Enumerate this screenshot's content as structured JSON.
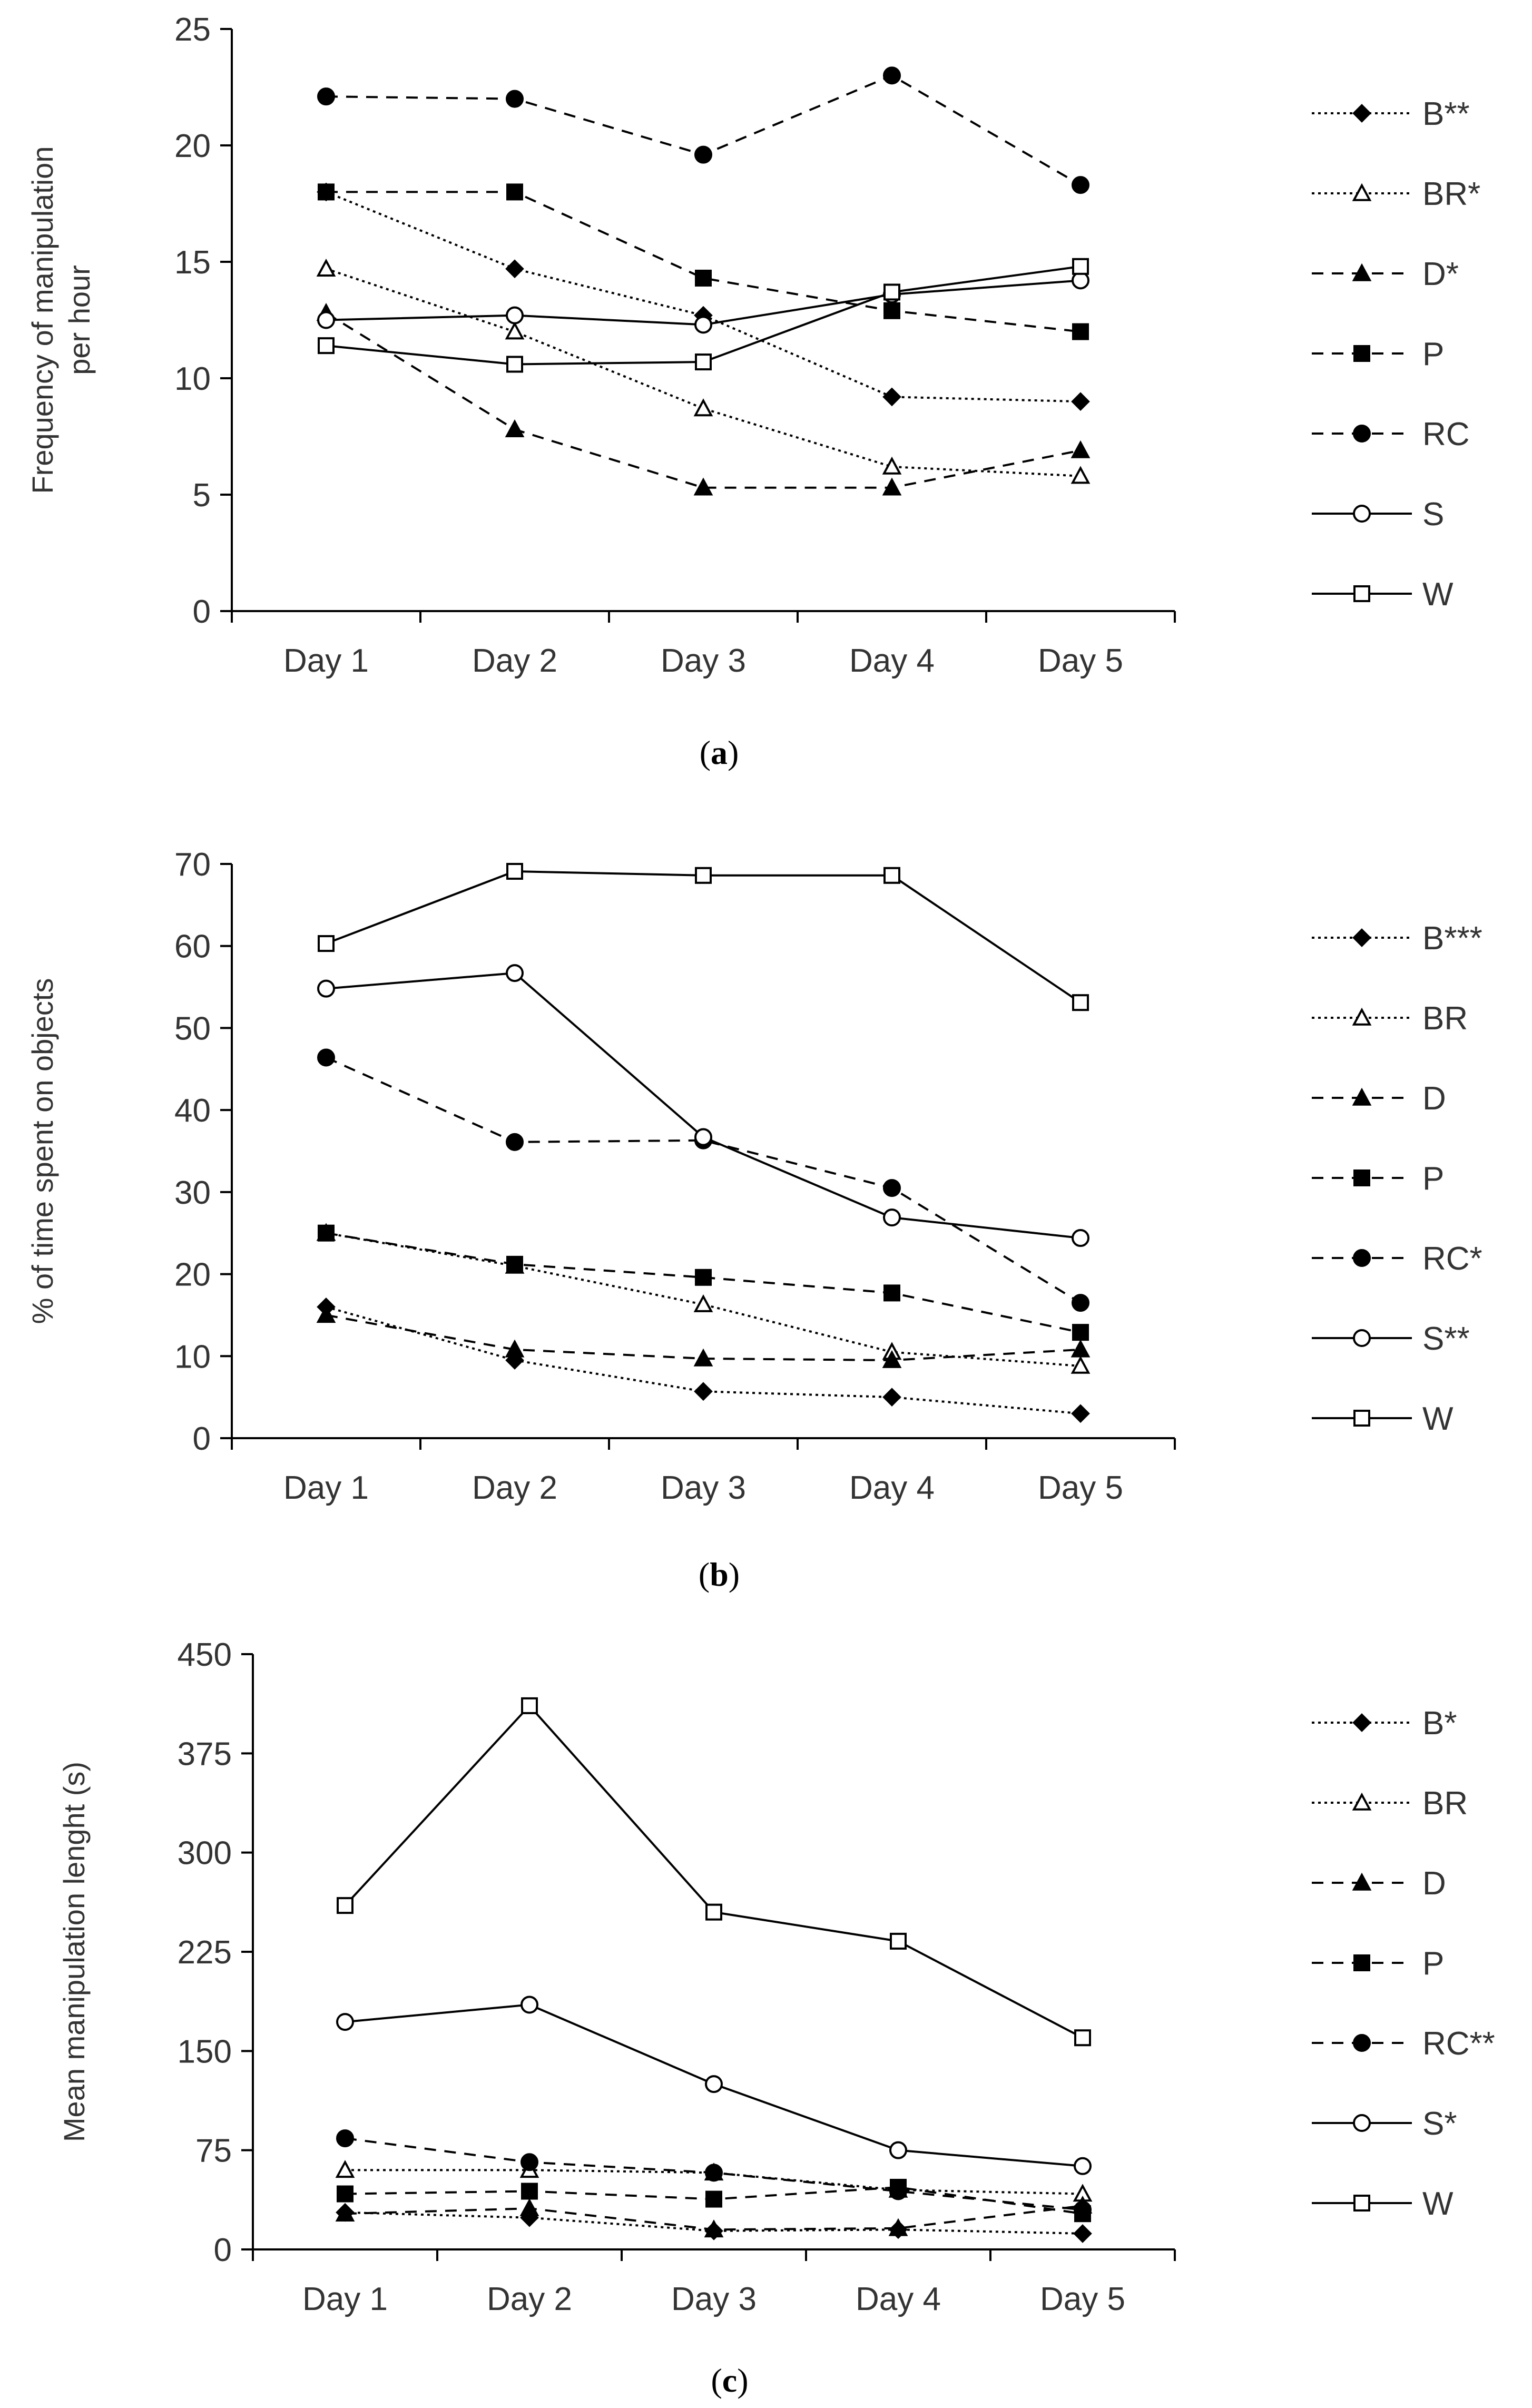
{
  "chart_data": [
    {
      "type": "line",
      "caption_letter": "a",
      "categories": [
        "Day 1",
        "Day 2",
        "Day 3",
        "Day 4",
        "Day 5"
      ],
      "ylabel": [
        "Frequency of manipulation",
        "per hour"
      ],
      "ylim": [
        0,
        25
      ],
      "yticks": [
        0,
        5,
        10,
        15,
        20,
        25
      ],
      "grid": false,
      "legend_position": "right",
      "series": [
        {
          "name": "B**",
          "key": "B",
          "values": [
            18.0,
            14.7,
            12.7,
            9.2,
            9.0
          ]
        },
        {
          "name": "BR*",
          "key": "BR",
          "values": [
            14.7,
            12.0,
            8.7,
            6.2,
            5.8
          ]
        },
        {
          "name": "D*",
          "key": "D",
          "values": [
            12.8,
            7.8,
            5.3,
            5.3,
            6.9
          ]
        },
        {
          "name": "P",
          "key": "P",
          "values": [
            18.0,
            18.0,
            14.3,
            12.9,
            12.0
          ]
        },
        {
          "name": "RC",
          "key": "RC",
          "values": [
            22.1,
            22.0,
            19.6,
            23.0,
            18.3
          ]
        },
        {
          "name": "S",
          "key": "S",
          "values": [
            12.5,
            12.7,
            12.3,
            13.6,
            14.2
          ]
        },
        {
          "name": "W",
          "key": "W",
          "values": [
            11.4,
            10.6,
            10.7,
            13.7,
            14.8
          ]
        }
      ]
    },
    {
      "type": "line",
      "caption_letter": "b",
      "categories": [
        "Day 1",
        "Day 2",
        "Day 3",
        "Day 4",
        "Day 5"
      ],
      "ylabel": [
        "% of time spent on objects"
      ],
      "ylim": [
        0,
        70
      ],
      "yticks": [
        0,
        10,
        20,
        30,
        40,
        50,
        60,
        70
      ],
      "grid": false,
      "legend_position": "right",
      "series": [
        {
          "name": "B***",
          "key": "B",
          "values": [
            16.0,
            9.5,
            5.7,
            5.0,
            3.0
          ]
        },
        {
          "name": "BR",
          "key": "BR",
          "values": [
            25.0,
            21.0,
            16.3,
            10.5,
            8.8
          ]
        },
        {
          "name": "D",
          "key": "D",
          "values": [
            15.0,
            10.8,
            9.7,
            9.5,
            10.8
          ]
        },
        {
          "name": "P",
          "key": "P",
          "values": [
            25.0,
            21.2,
            19.6,
            17.7,
            12.9
          ]
        },
        {
          "name": "RC*",
          "key": "RC",
          "values": [
            46.4,
            36.1,
            36.3,
            30.5,
            16.5
          ]
        },
        {
          "name": "S**",
          "key": "S",
          "values": [
            54.8,
            56.7,
            36.7,
            26.9,
            24.4
          ]
        },
        {
          "name": "W",
          "key": "W",
          "values": [
            60.3,
            69.1,
            68.6,
            68.6,
            53.1
          ]
        }
      ]
    },
    {
      "type": "line",
      "caption_letter": "c",
      "categories": [
        "Day 1",
        "Day 2",
        "Day 3",
        "Day 4",
        "Day 5"
      ],
      "ylabel": [
        "Mean manipulation lenght (s)"
      ],
      "ylim": [
        0,
        450
      ],
      "yticks": [
        0,
        75,
        150,
        225,
        300,
        375,
        450
      ],
      "grid": false,
      "legend_position": "right",
      "series": [
        {
          "name": "B*",
          "key": "B",
          "values": [
            28,
            24,
            14,
            15,
            12
          ]
        },
        {
          "name": "BR",
          "key": "BR",
          "values": [
            60,
            60,
            58,
            45,
            42
          ]
        },
        {
          "name": "D",
          "key": "D",
          "values": [
            27,
            31,
            15,
            16,
            33
          ]
        },
        {
          "name": "P",
          "key": "P",
          "values": [
            42,
            44,
            38,
            47,
            27
          ]
        },
        {
          "name": "RC**",
          "key": "RC",
          "values": [
            84,
            66,
            58,
            44,
            30
          ]
        },
        {
          "name": "S*",
          "key": "S",
          "values": [
            172,
            185,
            125,
            75,
            63
          ]
        },
        {
          "name": "W",
          "key": "W",
          "values": [
            260,
            411,
            255,
            233,
            160
          ]
        }
      ]
    }
  ],
  "styles": {
    "B": {
      "dash": "dotted",
      "marker": "diamond",
      "fill": "#000000"
    },
    "BR": {
      "dash": "dotted",
      "marker": "triangle",
      "fill": "#ffffff"
    },
    "D": {
      "dash": "dashed",
      "marker": "triangle",
      "fill": "#000000"
    },
    "P": {
      "dash": "dashed",
      "marker": "square",
      "fill": "#000000"
    },
    "RC": {
      "dash": "dashed",
      "marker": "circle",
      "fill": "#000000"
    },
    "S": {
      "dash": "solid",
      "marker": "circle",
      "fill": "#ffffff"
    },
    "W": {
      "dash": "solid",
      "marker": "square",
      "fill": "#ffffff"
    }
  },
  "colors": {
    "ink": "#000000",
    "text": "#333333",
    "background": "#ffffff"
  }
}
